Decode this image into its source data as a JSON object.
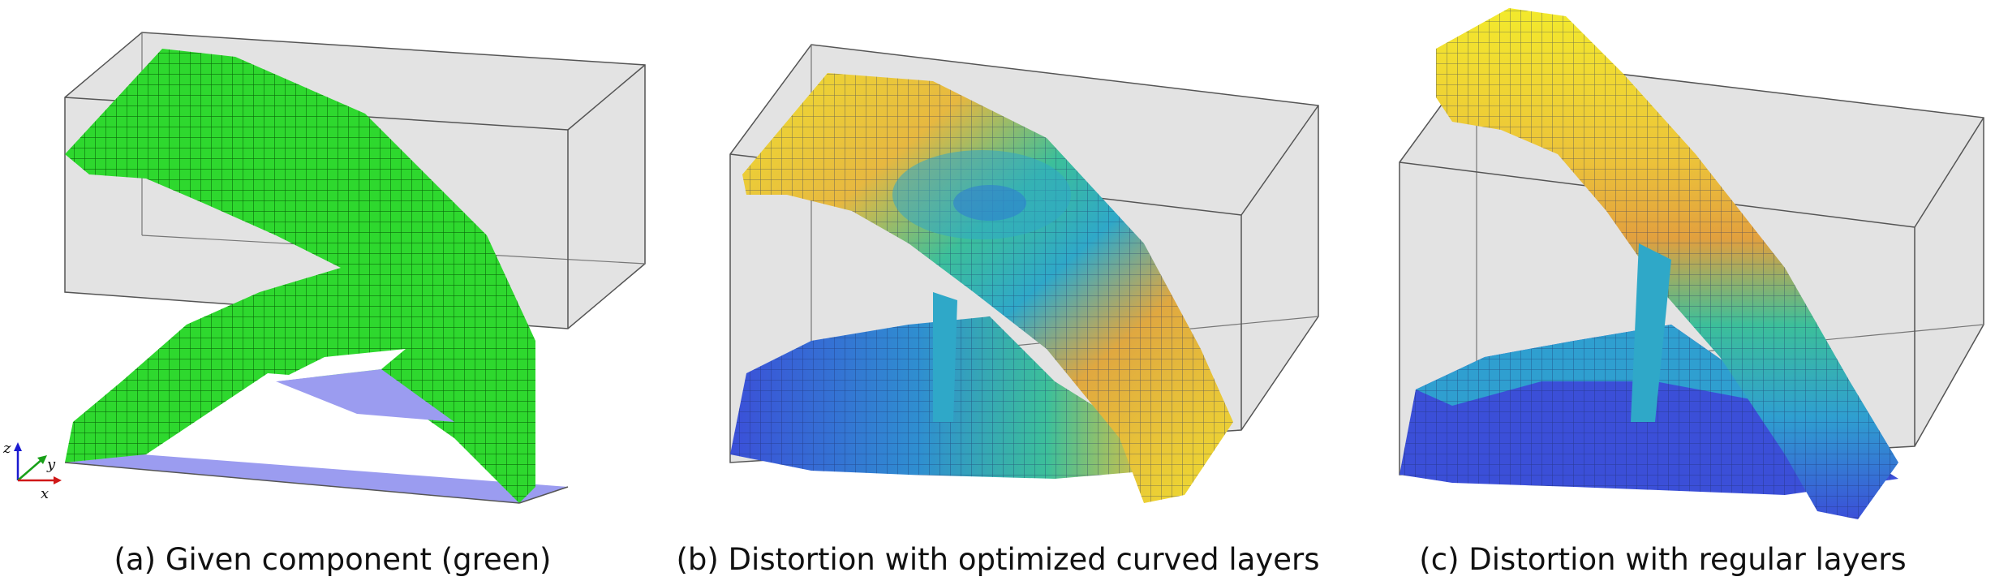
{
  "figure": {
    "panels": [
      {
        "id": "a",
        "caption": "(a) Given component (green)",
        "color_scheme": "uniform-green"
      },
      {
        "id": "b",
        "caption": "(b) Distortion with optimized curved layers",
        "color_scheme": "distortion-heatmap"
      },
      {
        "id": "c",
        "caption": "(c) Distortion with regular layers",
        "color_scheme": "distortion-heatmap"
      }
    ],
    "axes": {
      "z": "z",
      "y": "y",
      "x": "x"
    },
    "colors": {
      "component_green": "#2ed82e",
      "base_plate": "#9b9cf0",
      "bounding_box_fill": "#e3e3e3",
      "heat_low": "#3b4fd8",
      "heat_mid_low": "#2fa8c8",
      "heat_mid": "#3cbf9a",
      "heat_mid_high": "#e0a840",
      "heat_high": "#f0e030",
      "axis_z": "#1a1ad0",
      "axis_y": "#18a018",
      "axis_x": "#d01818"
    }
  }
}
